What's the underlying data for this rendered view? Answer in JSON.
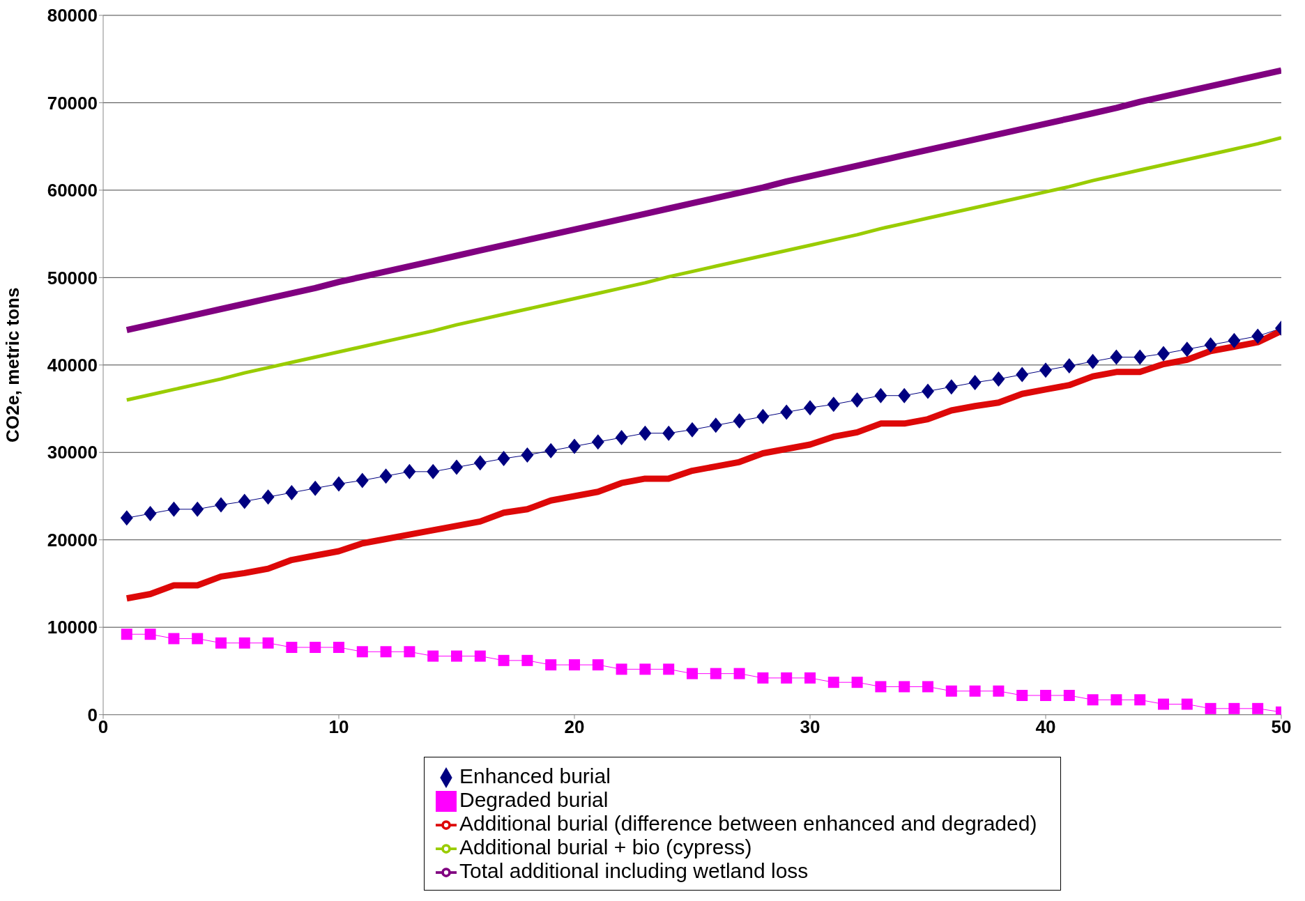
{
  "chart_data": {
    "type": "line",
    "ylabel": "CO2e, metric tons",
    "x": [
      1,
      2,
      3,
      4,
      5,
      6,
      7,
      8,
      9,
      10,
      11,
      12,
      13,
      14,
      15,
      16,
      17,
      18,
      19,
      20,
      21,
      22,
      23,
      24,
      25,
      26,
      27,
      28,
      29,
      30,
      31,
      32,
      33,
      34,
      35,
      36,
      37,
      38,
      39,
      40,
      41,
      42,
      43,
      44,
      45,
      46,
      47,
      48,
      49,
      50
    ],
    "series": [
      {
        "name": "Enhanced burial",
        "color": "#000080",
        "marker": "diamond",
        "values": [
          22500,
          23000,
          23500,
          23500,
          24000,
          24400,
          24900,
          25400,
          25900,
          26400,
          26800,
          27300,
          27800,
          27800,
          28300,
          28800,
          29300,
          29700,
          30200,
          30700,
          31200,
          31700,
          32200,
          32200,
          32600,
          33100,
          33600,
          34100,
          34600,
          35100,
          35500,
          36000,
          36500,
          36500,
          37000,
          37500,
          38000,
          38400,
          38900,
          39400,
          39900,
          40400,
          40900,
          40900,
          41300,
          41800,
          42300,
          42800,
          43300,
          44200
        ]
      },
      {
        "name": "Degraded burial",
        "color": "#ff00ff",
        "marker": "square",
        "values": [
          9200,
          9200,
          8700,
          8700,
          8200,
          8200,
          8200,
          7700,
          7700,
          7700,
          7200,
          7200,
          7200,
          6700,
          6700,
          6700,
          6200,
          6200,
          5700,
          5700,
          5700,
          5200,
          5200,
          5200,
          4700,
          4700,
          4700,
          4200,
          4200,
          4200,
          3700,
          3700,
          3200,
          3200,
          3200,
          2700,
          2700,
          2700,
          2200,
          2200,
          2200,
          1700,
          1700,
          1700,
          1200,
          1200,
          700,
          700,
          700,
          300
        ]
      },
      {
        "name": "Additional burial (difference between enhanced and degraded)",
        "color": "#dd0808",
        "marker": "none",
        "values": [
          13300,
          13800,
          14800,
          14800,
          15800,
          16200,
          16700,
          17700,
          18200,
          18700,
          19600,
          20100,
          20600,
          21100,
          21600,
          22100,
          23100,
          23500,
          24500,
          25000,
          25500,
          26500,
          27000,
          27000,
          27900,
          28400,
          28900,
          29900,
          30400,
          30900,
          31800,
          32300,
          33300,
          33300,
          33800,
          34800,
          35300,
          35700,
          36700,
          37200,
          37700,
          38700,
          39200,
          39200,
          40100,
          40600,
          41600,
          42100,
          42600,
          43900
        ]
      },
      {
        "name": "Additional burial + bio (cypress)",
        "color": "#99cc00",
        "marker": "none",
        "values": [
          36000,
          36600,
          37200,
          37800,
          38400,
          39100,
          39700,
          40300,
          40900,
          41500,
          42100,
          42700,
          43300,
          43900,
          44600,
          45200,
          45800,
          46400,
          47000,
          47600,
          48200,
          48800,
          49400,
          50100,
          50700,
          51300,
          51900,
          52500,
          53100,
          53700,
          54300,
          54900,
          55600,
          56200,
          56800,
          57400,
          58000,
          58600,
          59200,
          59800,
          60400,
          61100,
          61700,
          62300,
          62900,
          63500,
          64100,
          64700,
          65300,
          66000
        ]
      },
      {
        "name": "Total additional including wetland loss",
        "color": "#800080",
        "marker": "none",
        "values": [
          44000,
          44600,
          45200,
          45800,
          46400,
          47000,
          47600,
          48200,
          48800,
          49500,
          50100,
          50700,
          51300,
          51900,
          52500,
          53100,
          53700,
          54300,
          54900,
          55500,
          56100,
          56700,
          57300,
          57900,
          58500,
          59100,
          59700,
          60300,
          61000,
          61600,
          62200,
          62800,
          63400,
          64000,
          64600,
          65200,
          65800,
          66400,
          67000,
          67600,
          68200,
          68800,
          69400,
          70100,
          70700,
          71300,
          71900,
          72500,
          73100,
          73700
        ]
      }
    ],
    "xlim": [
      0,
      50
    ],
    "xticks": [
      0,
      10,
      20,
      30,
      40,
      50
    ],
    "ylim": [
      0,
      80000
    ],
    "yticks": [
      0,
      10000,
      20000,
      30000,
      40000,
      50000,
      60000,
      70000,
      80000
    ],
    "grid": "y",
    "legend": "bottom"
  }
}
